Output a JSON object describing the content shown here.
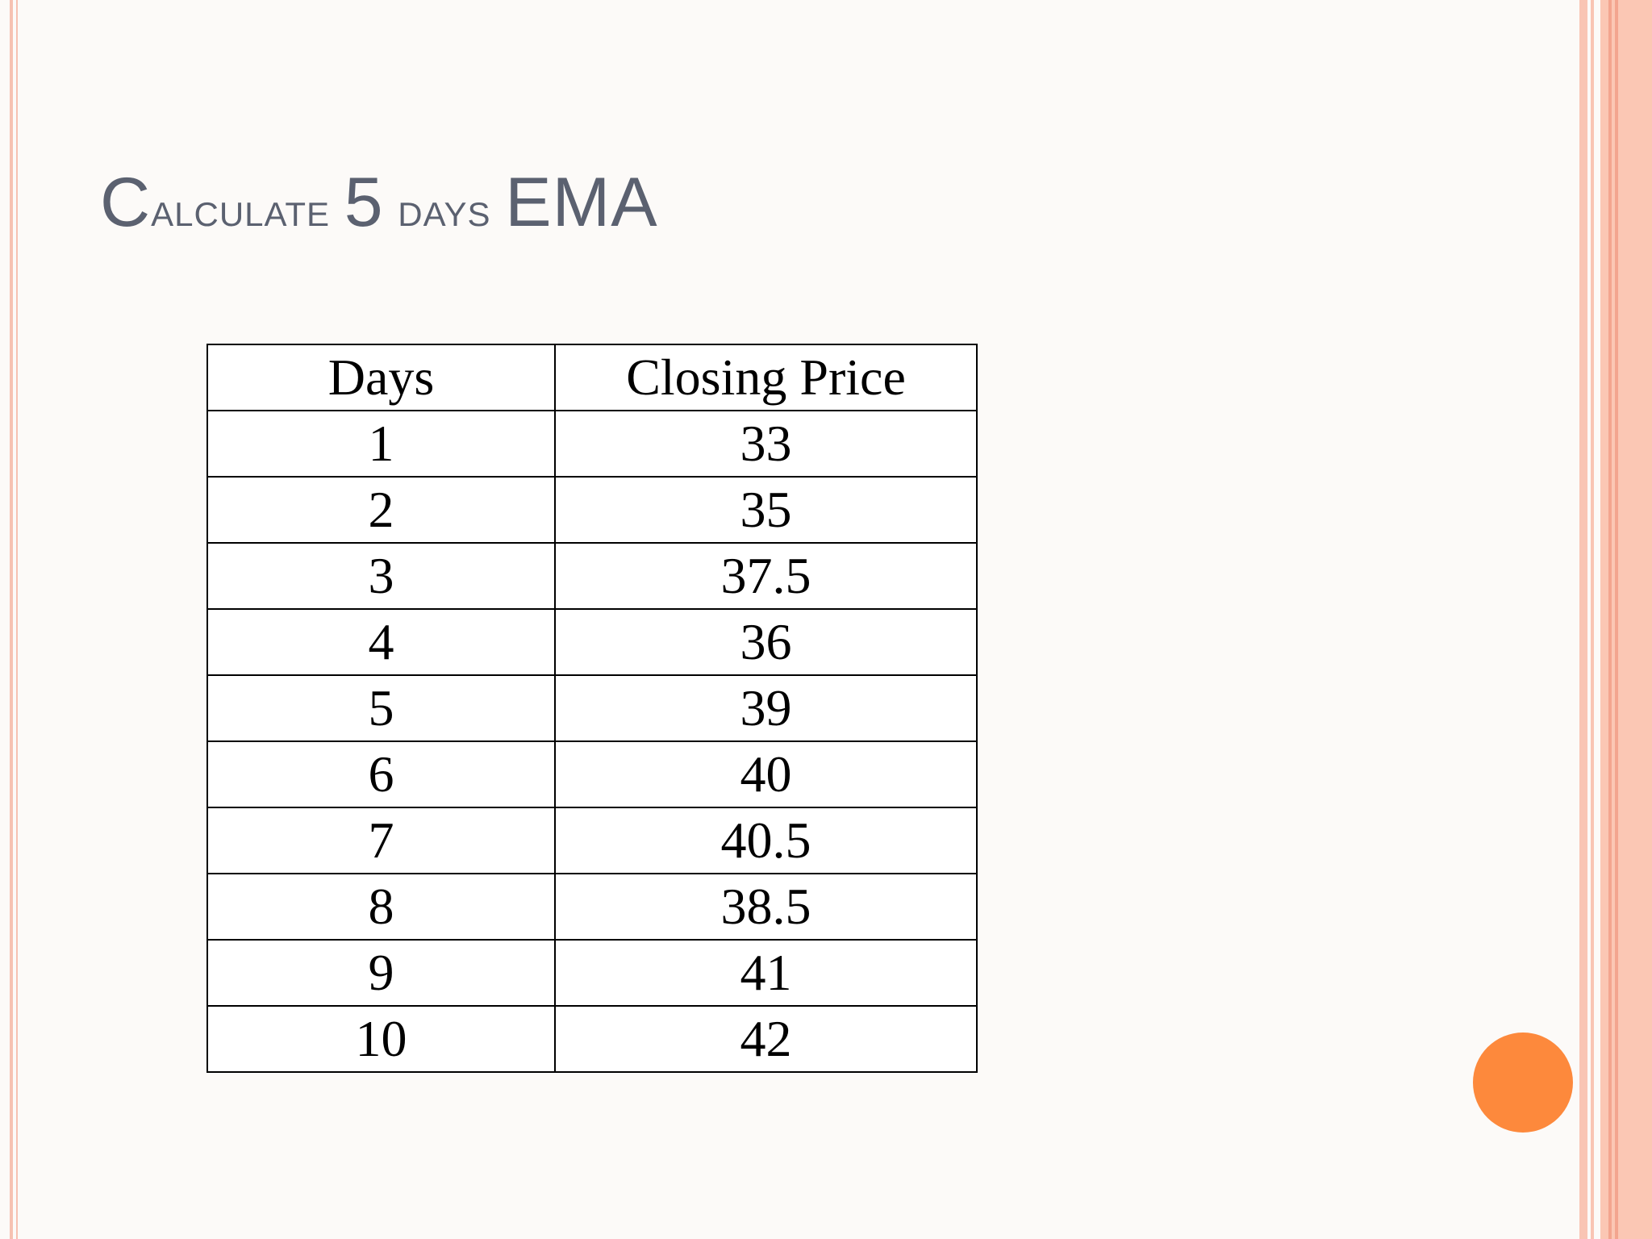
{
  "slide": {
    "title_prefix_cap": "C",
    "title_prefix_rest": "alculate",
    "title_number": "5",
    "title_days": "days",
    "title_suffix": "EMA"
  },
  "table": {
    "headers": [
      "Days",
      "Closing Price"
    ],
    "rows": [
      {
        "day": "1",
        "price": "33"
      },
      {
        "day": "2",
        "price": "35"
      },
      {
        "day": "3",
        "price": "37.5"
      },
      {
        "day": "4",
        "price": "36"
      },
      {
        "day": "5",
        "price": "39"
      },
      {
        "day": "6",
        "price": "40"
      },
      {
        "day": "7",
        "price": "40.5"
      },
      {
        "day": "8",
        "price": "38.5"
      },
      {
        "day": "9",
        "price": "41"
      },
      {
        "day": "10",
        "price": "42"
      }
    ]
  },
  "colors": {
    "title": "#5b6170",
    "accent_dot": "#fd893c",
    "border_stripes": "#f9c5b4"
  }
}
